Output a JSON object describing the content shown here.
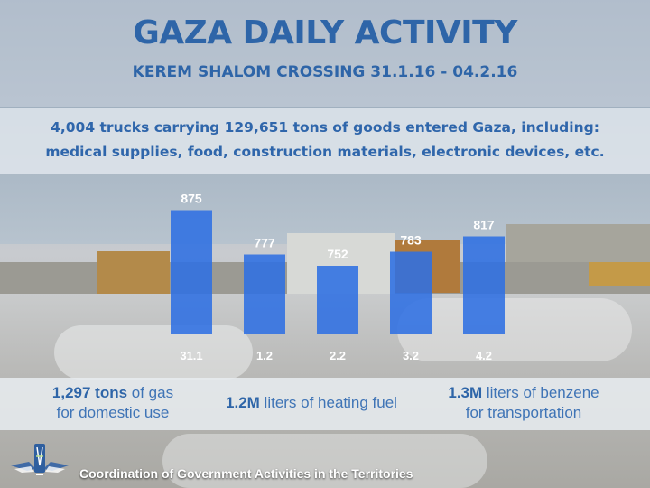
{
  "header": {
    "title": "GAZA DAILY ACTIVITY",
    "subtitle": "KEREM SHALOM CROSSING 31.1.16 - 04.2.16"
  },
  "summary": {
    "line1": "4,004 trucks carrying 129,651 tons of goods entered Gaza, including:",
    "line2": "medical supplies, food, construction materials, electronic devices, etc."
  },
  "chart_data": {
    "type": "bar",
    "title": "",
    "xlabel": "",
    "ylabel": "",
    "categories": [
      "31.1",
      "1.2",
      "2.2",
      "3.2",
      "4.2"
    ],
    "values": [
      875,
      777,
      752,
      783,
      817
    ],
    "ylim": [
      600,
      900
    ],
    "grid": false,
    "bar_color": "#2f6fe3"
  },
  "stats": {
    "gas": {
      "value": "1,297 tons",
      "line1_rest": " of gas",
      "line2": "for domestic use"
    },
    "fuel": {
      "value": "1.2M",
      "rest": " liters of heating fuel"
    },
    "benzene": {
      "value": "1.3M",
      "line1_rest": " liters of benzene",
      "line2": "for transportation"
    }
  },
  "footer": {
    "organization": "Coordination of Government Activities in the Territories",
    "logo_icon": "cogat-emblem-icon"
  },
  "colors": {
    "title": "#2e65a8",
    "bar": "#2f6fe3",
    "bar_label": "#ffffff"
  }
}
